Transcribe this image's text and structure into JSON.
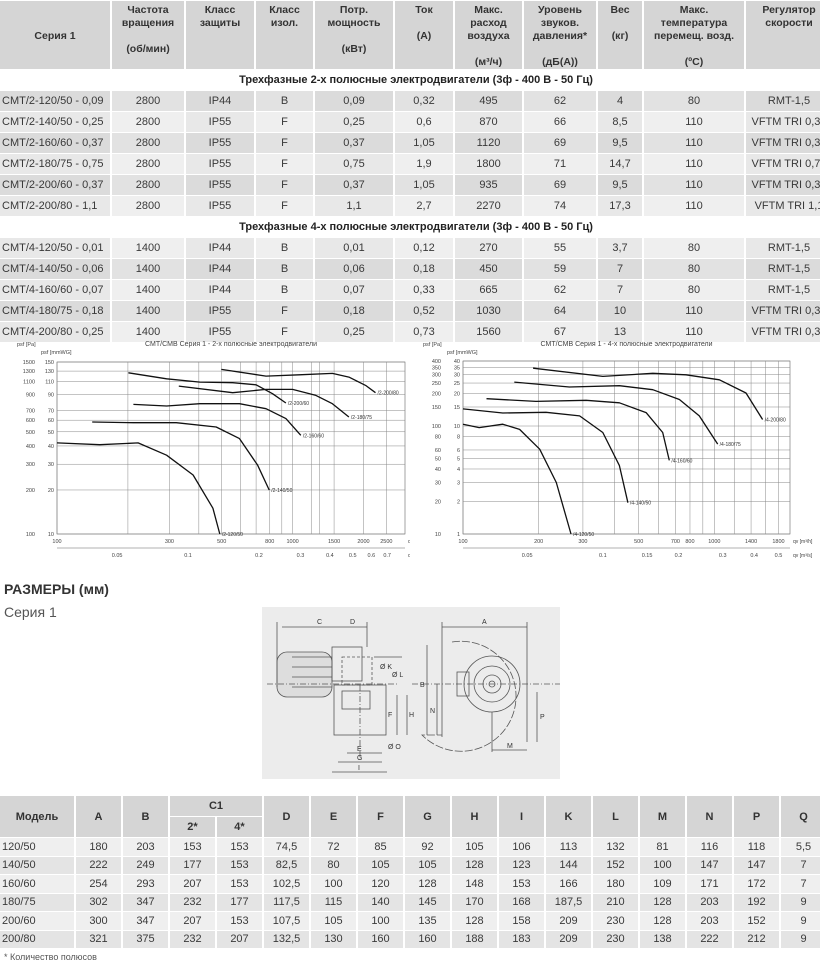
{
  "spec_table": {
    "headers": [
      {
        "title": "Серия 1",
        "unit": ""
      },
      {
        "title": "Частота вращения",
        "unit": "(об/мин)"
      },
      {
        "title": "Класс защиты",
        "unit": ""
      },
      {
        "title": "Класс изол.",
        "unit": ""
      },
      {
        "title": "Потр. мощность",
        "unit": "(кВт)"
      },
      {
        "title": "Ток",
        "unit": "(А)"
      },
      {
        "title": "Макс. расход воздуха",
        "unit": "(м³/ч)"
      },
      {
        "title": "Уровень звуков. давления*",
        "unit": "(дБ(А))"
      },
      {
        "title": "Вес",
        "unit": "(кг)"
      },
      {
        "title": "Макс. температура перемещ. возд.",
        "unit": "(ºС)"
      },
      {
        "title": "Регулятор скорости",
        "unit": ""
      }
    ],
    "groups": [
      {
        "title": "Трехфазные 2-х полюсные электродвигатели (3ф - 400 В - 50 Гц)",
        "rows": [
          [
            "CMT/2-120/50 - 0,09",
            "2800",
            "IP44",
            "B",
            "0,09",
            "0,32",
            "495",
            "62",
            "4",
            "80",
            "RMT-1,5"
          ],
          [
            "CMT/2-140/50 - 0,25",
            "2800",
            "IP55",
            "F",
            "0,25",
            "0,6",
            "870",
            "66",
            "8,5",
            "110",
            "VFTM TRI 0,37"
          ],
          [
            "CMT/2-160/60 - 0,37",
            "2800",
            "IP55",
            "F",
            "0,37",
            "1,05",
            "1120",
            "69",
            "9,5",
            "110",
            "VFTM TRI 0,37"
          ],
          [
            "CMT/2-180/75 - 0,75",
            "2800",
            "IP55",
            "F",
            "0,75",
            "1,9",
            "1800",
            "71",
            "14,7",
            "110",
            "VFTM TRI 0,75"
          ],
          [
            "CMT/2-200/60 - 0,37",
            "2800",
            "IP55",
            "F",
            "0,37",
            "1,05",
            "935",
            "69",
            "9,5",
            "110",
            "VFTM TRI 0,37"
          ],
          [
            "CMT/2-200/80 - 1,1",
            "2800",
            "IP55",
            "F",
            "1,1",
            "2,7",
            "2270",
            "74",
            "17,3",
            "110",
            "VFTM TRI 1,1"
          ]
        ]
      },
      {
        "title": "Трехфазные 4-х полюсные электродвигатели (3ф - 400 В - 50 Гц)",
        "rows": [
          [
            "CMT/4-120/50 - 0,01",
            "1400",
            "IP44",
            "B",
            "0,01",
            "0,12",
            "270",
            "55",
            "3,7",
            "80",
            "RMT-1,5"
          ],
          [
            "CMT/4-140/50 - 0,06",
            "1400",
            "IP44",
            "B",
            "0,06",
            "0,18",
            "450",
            "59",
            "7",
            "80",
            "RMT-1,5"
          ],
          [
            "CMT/4-160/60 - 0,07",
            "1400",
            "IP44",
            "B",
            "0,07",
            "0,33",
            "665",
            "62",
            "7",
            "80",
            "RMT-1,5"
          ],
          [
            "CMT/4-180/75 - 0,18",
            "1400",
            "IP55",
            "F",
            "0,18",
            "0,52",
            "1030",
            "64",
            "10",
            "110",
            "VFTM TRI 0,37"
          ],
          [
            "CMT/4-200/80 - 0,25",
            "1400",
            "IP55",
            "F",
            "0,25",
            "0,73",
            "1560",
            "67",
            "13",
            "110",
            "VFTM TRI 0,37"
          ]
        ]
      }
    ]
  },
  "chart_data": [
    {
      "type": "line",
      "title": "CMT/CMB   Серия 1 - 2-х полюсные электродвигатели",
      "ylabel": "psf [Pa]",
      "ylabel2": "psf [mmWG]",
      "xlabel": "qv [m³/h]",
      "xlabel2": "qv [m³/s]",
      "xscale": "log",
      "yscale": "log",
      "xlim": [
        100,
        3000
      ],
      "ylim": [
        100,
        1500
      ],
      "grid": true,
      "xticks": [
        100,
        300,
        500,
        800,
        1000,
        1500,
        2000,
        2500
      ],
      "xgrid_extra": [
        200,
        400,
        600,
        700,
        900,
        1200,
        1300
      ],
      "x2ticks": [
        0.05,
        0.1,
        0.2,
        0.3,
        0.4,
        0.5,
        0.6,
        0.7
      ],
      "yticks": [
        100,
        200,
        300,
        400,
        500,
        600,
        700,
        900,
        1100,
        1300,
        1500
      ],
      "y2ticks": [
        10,
        20,
        30,
        40,
        50,
        60,
        70,
        90,
        110,
        130,
        150
      ],
      "series": [
        {
          "name": "/2-120/50",
          "x": [
            100,
            152,
            221,
            292,
            378,
            459,
            491
          ],
          "y": [
            420,
            408,
            420,
            346,
            253,
            150,
            100
          ]
        },
        {
          "name": "/2-140/50",
          "x": [
            141,
            211,
            321,
            474,
            595,
            711,
            796
          ],
          "y": [
            583,
            577,
            577,
            539,
            449,
            295,
            200
          ]
        },
        {
          "name": "/2-160/60",
          "x": [
            211,
            292,
            404,
            595,
            771,
            937,
            1084
          ],
          "y": [
            770,
            750,
            778,
            778,
            719,
            615,
            473
          ]
        },
        {
          "name": "/2-200/60",
          "x": [
            201,
            292,
            404,
            557,
            700,
            822,
            937
          ],
          "y": [
            1265,
            1152,
            1093,
            1082,
            1048,
            910,
            786
          ]
        },
        {
          "name": "/2-180/75",
          "x": [
            329,
            557,
            771,
            1000,
            1256,
            1475,
            1734
          ],
          "y": [
            1026,
            925,
            975,
            975,
            887,
            778,
            631
          ]
        },
        {
          "name": "/2-200/80",
          "x": [
            498,
            771,
            1066,
            1475,
            1734,
            2042,
            2249
          ],
          "y": [
            1334,
            1201,
            1227,
            1253,
            1182,
            1037,
            925
          ]
        }
      ]
    },
    {
      "type": "line",
      "title": "CMT/CMB   Серия 1 - 4-х полюсные электродвигатели",
      "ylabel": "psf [Pa]",
      "ylabel2": "psf [mmWG]",
      "xlabel": "qv [m³/h]",
      "xlabel2": "qv [m³/s]",
      "xscale": "log",
      "yscale": "log",
      "xlim": [
        100,
        2000
      ],
      "ylim": [
        10,
        400
      ],
      "grid": true,
      "xticks": [
        100,
        200,
        300,
        500,
        700,
        800,
        1000,
        1400,
        1800
      ],
      "xgrid_extra": [
        400,
        600,
        900,
        1200,
        1600
      ],
      "x2ticks": [
        0.05,
        0.1,
        0.15,
        0.2,
        0.3,
        0.4,
        0.5
      ],
      "yticks": [
        10,
        20,
        30,
        40,
        50,
        60,
        80,
        100,
        150,
        200,
        250,
        300,
        350,
        400
      ],
      "y2ticks": [
        1,
        2,
        3,
        4,
        5,
        6,
        8,
        10,
        15,
        20,
        25,
        30,
        35,
        40
      ],
      "series": [
        {
          "name": "/4-120/50",
          "x": [
            100,
            116,
            144,
            168,
            202,
            235,
            269
          ],
          "y": [
            104,
            96.6,
            104,
            93,
            61,
            30,
            10
          ]
        },
        {
          "name": "/4-140/50",
          "x": [
            100,
            144,
            214,
            291,
            360,
            419,
            453
          ],
          "y": [
            144,
            132,
            134,
            124,
            87,
            43,
            19.5
          ]
        },
        {
          "name": "/4-160/60",
          "x": [
            124,
            195,
            309,
            419,
            535,
            623,
            662
          ],
          "y": [
            179,
            169,
            173,
            164,
            133,
            87,
            48
          ]
        },
        {
          "name": "/4-180/75",
          "x": [
            160,
            265,
            419,
            569,
            726,
            871,
            1031
          ],
          "y": [
            255,
            230,
            236,
            217,
            176,
            124,
            68
          ]
        },
        {
          "name": "/4-200/80",
          "x": [
            190,
            360,
            569,
            771,
            1047,
            1336,
            1556
          ],
          "y": [
            343,
            288,
            308,
            298,
            268,
            202,
            115
          ]
        }
      ]
    }
  ],
  "dimensions": {
    "title": "РАЗМЕРЫ (мм)",
    "subtitle": "Серия 1",
    "drawing_labels": {
      "A": "A",
      "B": "B",
      "C": "C",
      "D": "D",
      "E": "E",
      "F": "F",
      "G": "G",
      "H": "H",
      "I": "I",
      "K": "Ø K",
      "L": "Ø L",
      "M": "M",
      "N": "N",
      "O": "Ø O",
      "P": "P"
    },
    "headers": [
      "Модель",
      "A",
      "B",
      "C1",
      "D",
      "E",
      "F",
      "G",
      "H",
      "I",
      "K",
      "L",
      "M",
      "N",
      "P",
      "Q"
    ],
    "c1_sub": [
      "2*",
      "4*"
    ],
    "rows": [
      [
        "120/50",
        "180",
        "203",
        "153",
        "153",
        "74,5",
        "72",
        "85",
        "92",
        "105",
        "106",
        "113",
        "132",
        "81",
        "116",
        "118",
        "5,5"
      ],
      [
        "140/50",
        "222",
        "249",
        "177",
        "153",
        "82,5",
        "80",
        "105",
        "105",
        "128",
        "123",
        "144",
        "152",
        "100",
        "147",
        "147",
        "7"
      ],
      [
        "160/60",
        "254",
        "293",
        "207",
        "153",
        "102,5",
        "100",
        "120",
        "128",
        "148",
        "153",
        "166",
        "180",
        "109",
        "171",
        "172",
        "7"
      ],
      [
        "180/75",
        "302",
        "347",
        "232",
        "177",
        "117,5",
        "115",
        "140",
        "145",
        "170",
        "168",
        "187,5",
        "210",
        "128",
        "203",
        "192",
        "9"
      ],
      [
        "200/60",
        "300",
        "347",
        "207",
        "153",
        "107,5",
        "105",
        "100",
        "135",
        "128",
        "158",
        "209",
        "230",
        "128",
        "203",
        "152",
        "9"
      ],
      [
        "200/80",
        "321",
        "375",
        "232",
        "207",
        "132,5",
        "130",
        "160",
        "160",
        "188",
        "183",
        "209",
        "230",
        "138",
        "222",
        "212",
        "9"
      ]
    ],
    "footnote": "* Количество полюсов"
  }
}
